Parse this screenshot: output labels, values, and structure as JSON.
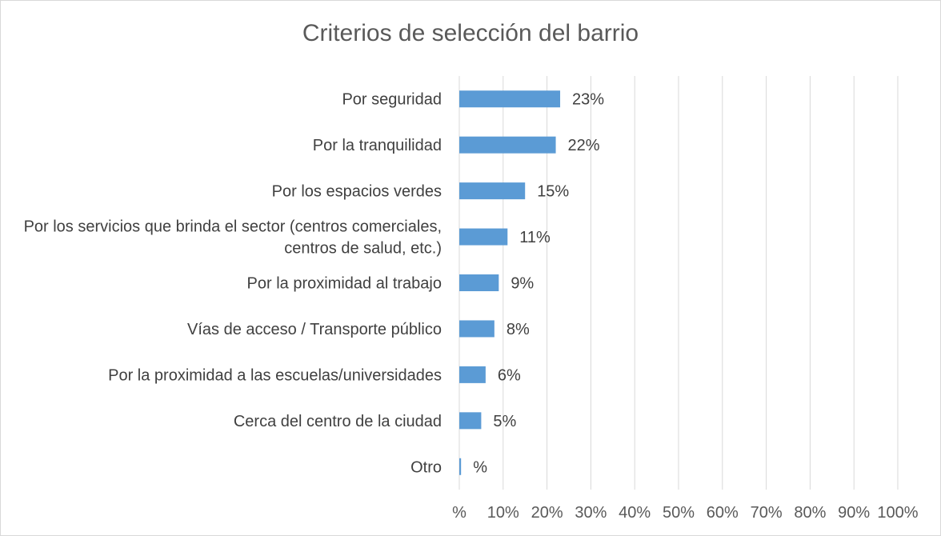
{
  "chart_data": {
    "type": "bar",
    "orientation": "horizontal",
    "title": "Criterios de selección del barrio",
    "categories": [
      [
        "Por seguridad"
      ],
      [
        "Por la tranquilidad"
      ],
      [
        "Por los espacios verdes"
      ],
      [
        "Por los servicios que brinda el sector (centros comerciales,",
        "centros de salud, etc.)"
      ],
      [
        "Por la proximidad al trabajo"
      ],
      [
        "Vías de acceso / Transporte público"
      ],
      [
        "Por la proximidad a las escuelas/universidades"
      ],
      [
        "Cerca del centro de la ciudad"
      ],
      [
        "Otro"
      ]
    ],
    "values": [
      23,
      22,
      15,
      11,
      9,
      8,
      6,
      5,
      0.4
    ],
    "data_labels": [
      "23%",
      "22%",
      "15%",
      "11%",
      "9%",
      "8%",
      "6%",
      "5%",
      "%"
    ],
    "xlim": [
      0,
      100
    ],
    "x_ticks": [
      "%",
      "10%",
      "20%",
      "30%",
      "40%",
      "50%",
      "60%",
      "70%",
      "80%",
      "90%",
      "100%"
    ],
    "grid": true,
    "bar_color": "#5b9bd5",
    "grid_color": "#d9d9d9"
  }
}
